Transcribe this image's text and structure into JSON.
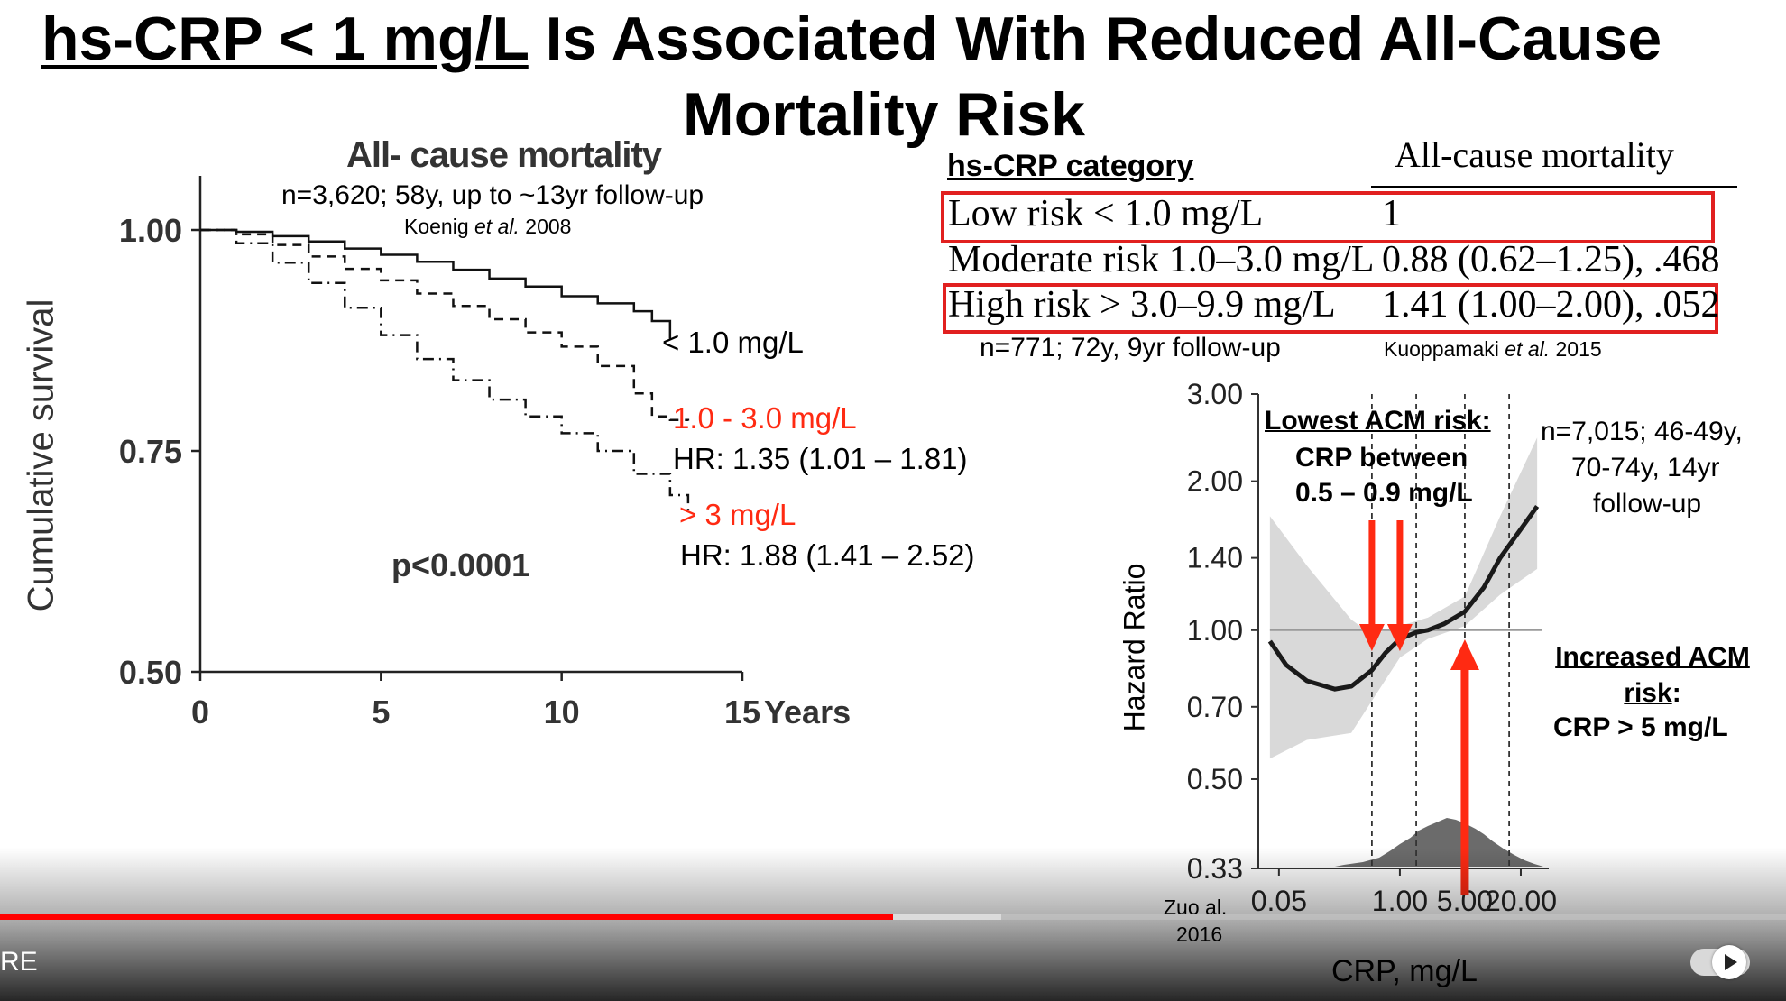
{
  "slide": {
    "title_underlined": "hs-CRP < 1 mg/L",
    "title_rest": " Is Associated With Reduced All-Cause",
    "title_line2": "Mortality Risk"
  },
  "km_chart_text": {
    "subtitle": "n=3,620; 58y, up to ~13yr follow-up",
    "citation_name": "Koenig ",
    "citation_etal": "et al.",
    "citation_year": " 2008",
    "label_low": "< 1.0 mg/L",
    "label_mid": "1.0 - 3.0 mg/L",
    "hr_mid": "HR: 1.35 (1.01 – 1.81)",
    "label_high": "> 3 mg/L",
    "hr_high": "HR: 1.88 (1.41 – 2.52)",
    "pvalue": "p<0.0001"
  },
  "table": {
    "header_category": "hs-CRP category",
    "header_mortality": "All-cause mortality",
    "rows": [
      {
        "category": "Low risk < 1.0 mg/L",
        "value": "1",
        "highlighted": true
      },
      {
        "category": "Moderate risk 1.0–3.0 mg/L",
        "value": "0.88 (0.62–1.25), .468",
        "highlighted": false
      },
      {
        "category": "High risk > 3.0–9.9 mg/L",
        "value": "1.41 (1.00–2.00), .052",
        "highlighted": true
      }
    ],
    "footnote_left": "n=771; 72y, 9yr follow-up",
    "footnote_name": "Kuoppamaki ",
    "footnote_etal": "et al.",
    "footnote_year": " 2015",
    "highlight_color": "#e1201f"
  },
  "hr_chart_text": {
    "lowest_title": "Lowest ACM risk:",
    "lowest_line2": "CRP between",
    "lowest_line3": "0.5 – 0.9 mg/L",
    "cohort_line1": "n=7,015; 46-49y,",
    "cohort_line2": "70-74y, 14yr",
    "cohort_line3": "follow-up",
    "increased_title": "Increased ACM",
    "increased_title2": "risk",
    "increased_colon": ":",
    "increased_line3": "CRP > 5 mg/L",
    "citation_line1": "Zuo al.",
    "citation_line2": "2016"
  },
  "chart_data": [
    {
      "type": "line",
      "title": "All- cause mortality",
      "xlabel": "Years",
      "ylabel": "Cumulative survival",
      "xlim": [
        0,
        15
      ],
      "ylim": [
        0.5,
        1.0
      ],
      "x_ticks": [
        "0",
        "5",
        "10",
        "15"
      ],
      "y_ticks": [
        "1.00",
        "0.75",
        "0.50"
      ],
      "series": [
        {
          "name": "< 1.0 mg/L",
          "style": "solid",
          "x": [
            0,
            1,
            2,
            3,
            4,
            5,
            6,
            7,
            8,
            9,
            10,
            11,
            12,
            12.5,
            13
          ],
          "y": [
            1.0,
            0.998,
            0.993,
            0.987,
            0.979,
            0.972,
            0.964,
            0.955,
            0.945,
            0.936,
            0.925,
            0.917,
            0.908,
            0.897,
            0.877
          ]
        },
        {
          "name": "1.0 - 3.0 mg/L",
          "style": "dashed",
          "x": [
            0,
            1,
            2,
            3,
            4,
            5,
            6,
            7,
            8,
            9,
            10,
            11,
            12,
            12.5,
            13,
            13.5
          ],
          "y": [
            1.0,
            0.995,
            0.983,
            0.97,
            0.956,
            0.943,
            0.928,
            0.914,
            0.899,
            0.884,
            0.868,
            0.846,
            0.815,
            0.789,
            0.785,
            0.784
          ]
        },
        {
          "name": "> 3 mg/L",
          "style": "dashdot",
          "x": [
            0,
            1,
            2,
            3,
            4,
            5,
            6,
            7,
            8,
            9,
            10,
            11,
            12,
            13,
            13.5
          ],
          "y": [
            1.0,
            0.985,
            0.963,
            0.94,
            0.912,
            0.881,
            0.854,
            0.83,
            0.808,
            0.789,
            0.77,
            0.75,
            0.724,
            0.7,
            0.68
          ]
        }
      ]
    },
    {
      "type": "line",
      "xlabel": "CRP, mg/L",
      "ylabel": "Hazard Ratio",
      "x_scale": "log",
      "y_scale": "log",
      "xlim": [
        0.03,
        40
      ],
      "ylim": [
        0.33,
        3.0
      ],
      "x_ticks": [
        "0.05",
        "1.00",
        "5.00",
        "20.00"
      ],
      "y_ticks": [
        "3.00",
        "2.00",
        "1.40",
        "1.00",
        "0.70",
        "0.50",
        "0.33"
      ],
      "reference_line_y": 1.0,
      "dashed_vertical_lines_x": [
        0.5,
        1.5,
        5.0,
        15.0
      ],
      "series": [
        {
          "style": "solid",
          "x": [
            0.04,
            0.06,
            0.1,
            0.2,
            0.3,
            0.5,
            0.7,
            1.0,
            1.5,
            2,
            3,
            5,
            8,
            12,
            20,
            30
          ],
          "y": [
            0.95,
            0.85,
            0.79,
            0.76,
            0.77,
            0.83,
            0.9,
            0.96,
            0.99,
            1.0,
            1.03,
            1.09,
            1.22,
            1.4,
            1.6,
            1.78
          ]
        }
      ],
      "band_upper": {
        "x": [
          0.04,
          0.1,
          0.3,
          0.5,
          1.0,
          2,
          5,
          12,
          30
        ],
        "y": [
          1.7,
          1.35,
          1.05,
          0.98,
          1.02,
          1.06,
          1.17,
          1.7,
          2.45
        ]
      },
      "band_lower": {
        "x": [
          0.04,
          0.1,
          0.3,
          0.5,
          1.0,
          2,
          5,
          12,
          30
        ],
        "y": [
          0.55,
          0.6,
          0.62,
          0.72,
          0.88,
          0.96,
          1.02,
          1.18,
          1.33
        ]
      },
      "arrows_down_x": [
        0.5,
        1.0
      ],
      "arrow_up_x": 5.0,
      "arrow_color": "#ff2a12"
    }
  ],
  "player": {
    "left_text": "RE",
    "progress_fraction": 0.5,
    "accent": "#ff0000"
  }
}
